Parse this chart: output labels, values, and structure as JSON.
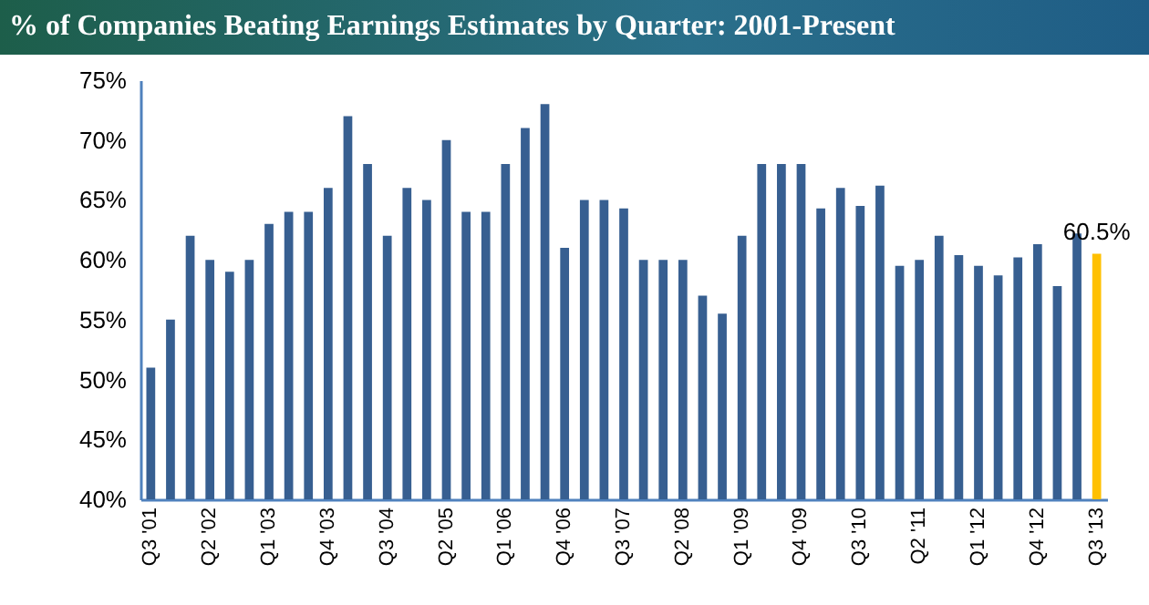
{
  "chart_data": {
    "type": "bar",
    "title": "% of Companies Beating Earnings Estimates by Quarter: 2001-Present",
    "categories": [
      "Q3 '01",
      null,
      null,
      "Q2 '02",
      null,
      null,
      "Q1 '03",
      null,
      null,
      "Q4 '03",
      null,
      null,
      "Q3 '04",
      null,
      null,
      "Q2 '05",
      null,
      null,
      "Q1 '06",
      null,
      null,
      "Q4 '06",
      null,
      null,
      "Q3 '07",
      null,
      null,
      "Q2 '08",
      null,
      null,
      "Q1 '09",
      null,
      null,
      "Q4 '09",
      null,
      null,
      "Q3 '10",
      null,
      null,
      "Q2 '11",
      null,
      null,
      "Q1 '12",
      null,
      null,
      "Q4 '12",
      null,
      null,
      "Q3 '13"
    ],
    "values": [
      51,
      55,
      62,
      60,
      59,
      60,
      63,
      64,
      64,
      66,
      72,
      68,
      62,
      66,
      65,
      70,
      64,
      64,
      68,
      71,
      73,
      61,
      65,
      65,
      64.3,
      60,
      60,
      60,
      57,
      55.5,
      62,
      68,
      68,
      68,
      64.3,
      66,
      64.5,
      66.2,
      59.5,
      60,
      62,
      60.4,
      59.5,
      58.7,
      60.2,
      61.3,
      57.8,
      62.2,
      60.5
    ],
    "colors": [
      "#375f91",
      "#375f91",
      "#375f91",
      "#375f91",
      "#375f91",
      "#375f91",
      "#375f91",
      "#375f91",
      "#375f91",
      "#375f91",
      "#375f91",
      "#375f91",
      "#375f91",
      "#375f91",
      "#375f91",
      "#375f91",
      "#375f91",
      "#375f91",
      "#375f91",
      "#375f91",
      "#375f91",
      "#375f91",
      "#375f91",
      "#375f91",
      "#375f91",
      "#375f91",
      "#375f91",
      "#375f91",
      "#375f91",
      "#375f91",
      "#375f91",
      "#375f91",
      "#375f91",
      "#375f91",
      "#375f91",
      "#375f91",
      "#375f91",
      "#375f91",
      "#375f91",
      "#375f91",
      "#375f91",
      "#375f91",
      "#375f91",
      "#375f91",
      "#375f91",
      "#375f91",
      "#375f91",
      "#375f91",
      "#ffc000"
    ],
    "value_labels": [
      null,
      null,
      null,
      null,
      null,
      null,
      null,
      null,
      null,
      null,
      null,
      null,
      null,
      null,
      null,
      null,
      null,
      null,
      null,
      null,
      null,
      null,
      null,
      null,
      null,
      null,
      null,
      null,
      null,
      null,
      null,
      null,
      null,
      null,
      null,
      null,
      null,
      null,
      null,
      null,
      null,
      null,
      null,
      null,
      null,
      null,
      null,
      null,
      "60.5%"
    ],
    "ylim": [
      40,
      75
    ],
    "yticks": [
      {
        "value": 40,
        "label": "40%"
      },
      {
        "value": 45,
        "label": "45%"
      },
      {
        "value": 50,
        "label": "50%"
      },
      {
        "value": 55,
        "label": "55%"
      },
      {
        "value": 60,
        "label": "60%"
      },
      {
        "value": 65,
        "label": "65%"
      },
      {
        "value": 70,
        "label": "70%"
      },
      {
        "value": 75,
        "label": "75%"
      }
    ],
    "grid": false
  }
}
